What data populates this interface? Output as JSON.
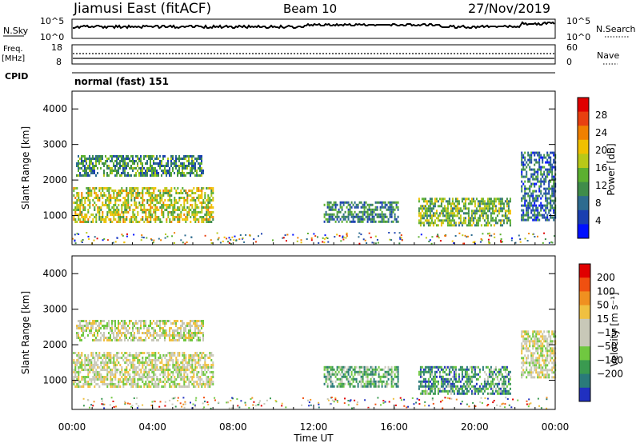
{
  "header": {
    "station": "Jiamusi East (fitACF)",
    "beam": "Beam 10",
    "date": "27/Nov/2019"
  },
  "top_panels": {
    "nsky_label": "N.Sky",
    "nsearch_label": "N.Search",
    "nsky_ticks": [
      "10^5",
      "10^0"
    ],
    "nsearch_ticks": [
      "10^5",
      "10^0"
    ],
    "freq_label_1": "Freq.",
    "freq_label_2": "[MHz]",
    "freq_ticks": [
      "18",
      "8"
    ],
    "nave_label": "Nave",
    "nave_ticks": [
      "60",
      "0"
    ],
    "cpid_label": "CPID",
    "cpid_value": "normal (fast) 151"
  },
  "chart_data": [
    {
      "type": "heatmap",
      "panel": "power",
      "ylabel": "Slant Range [km]",
      "yticks": [
        1000,
        2000,
        3000,
        4000
      ],
      "ylim": [
        180,
        4500
      ],
      "xlim": [
        0,
        24
      ],
      "colorbar": {
        "label": "Power [dB]",
        "ticks": [
          "4",
          "8",
          "12",
          "16",
          "20",
          "24",
          "28"
        ],
        "colors": [
          "#0010ff",
          "#1a3fb0",
          "#2d6b8f",
          "#3f8c4a",
          "#5cb030",
          "#b8c818",
          "#f0c000",
          "#f08000",
          "#e84010",
          "#e00000"
        ]
      },
      "regions": [
        {
          "t": [
            0.05,
            7.0
          ],
          "r": [
            800,
            1800
          ],
          "level": 0.55
        },
        {
          "t": [
            0.2,
            6.5
          ],
          "r": [
            2100,
            2700
          ],
          "level": 0.35
        },
        {
          "t": [
            12.5,
            16.2
          ],
          "r": [
            800,
            1400
          ],
          "level": 0.3
        },
        {
          "t": [
            17.2,
            21.8
          ],
          "r": [
            700,
            1500
          ],
          "level": 0.45
        },
        {
          "t": [
            22.3,
            24.0
          ],
          "r": [
            900,
            2800
          ],
          "level": 0.25
        }
      ]
    },
    {
      "type": "heatmap",
      "panel": "velocity",
      "ylabel": "Slant Range [km]",
      "yticks": [
        1000,
        2000,
        3000,
        4000
      ],
      "ylim": [
        180,
        4500
      ],
      "xlim": [
        0,
        24
      ],
      "xticks": [
        "00:00",
        "04:00",
        "08:00",
        "12:00",
        "16:00",
        "20:00",
        "00:00"
      ],
      "xlabel": "Time UT",
      "colorbar": {
        "label": "Velocity [m s⁻¹]",
        "ticks": [
          "200",
          "100",
          "50",
          "15",
          "−15",
          "−50",
          "−100",
          "−200"
        ],
        "colors": [
          "#2030c0",
          "#2a7a7a",
          "#3a9a50",
          "#70c840",
          "#c8c8b8",
          "#c8c8b8",
          "#f0c040",
          "#f09020",
          "#f05010",
          "#e00000"
        ]
      },
      "regions": [
        {
          "t": [
            0.05,
            7.0
          ],
          "r": [
            800,
            1800
          ],
          "level": 0.5
        },
        {
          "t": [
            0.2,
            6.5
          ],
          "r": [
            2100,
            2700
          ],
          "level": 0.5
        },
        {
          "t": [
            12.5,
            16.2
          ],
          "r": [
            800,
            1400
          ],
          "level": 0.3
        },
        {
          "t": [
            17.2,
            21.8
          ],
          "r": [
            600,
            1400
          ],
          "level": 0.25
        },
        {
          "t": [
            22.3,
            24.0
          ],
          "r": [
            1100,
            2400
          ],
          "level": 0.5
        }
      ]
    }
  ]
}
